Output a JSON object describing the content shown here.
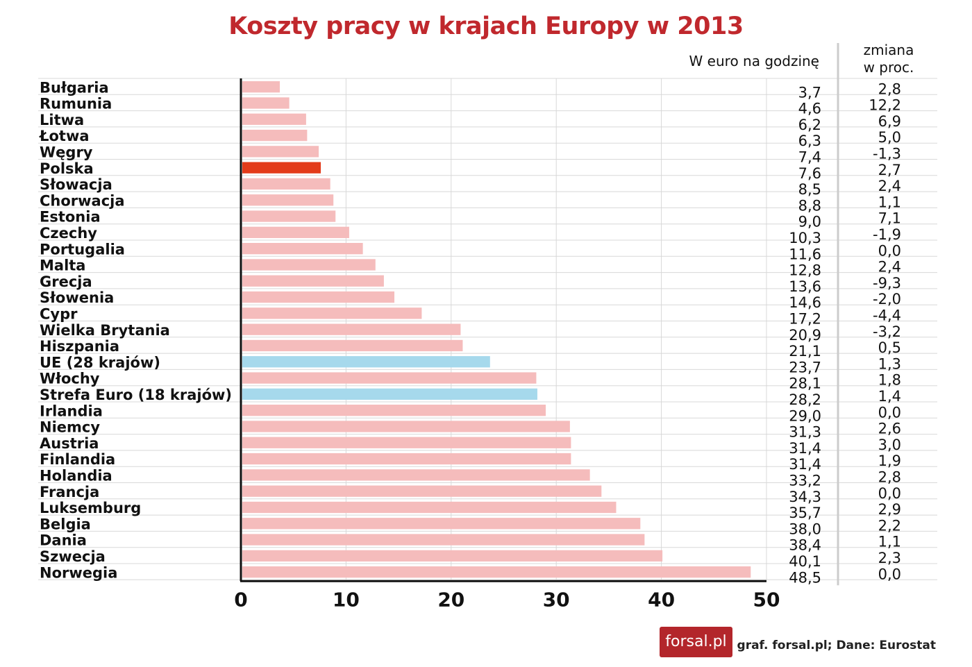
{
  "chart_data": {
    "type": "bar",
    "orientation": "horizontal",
    "title": "Koszty pracy w krajach Europy w 2013",
    "value_header": "W euro na godzinę",
    "change_header_line1": "zmiana",
    "change_header_line2": "w proc.",
    "xlim": [
      0,
      50
    ],
    "xticks": [
      "0",
      "10",
      "20",
      "30",
      "40",
      "50"
    ],
    "grid": true,
    "colors": {
      "default": "#f5bcbc",
      "highlight": "#e33b1a",
      "aggregate": "#a6d9ec"
    },
    "categories": [
      "Bułgaria",
      "Rumunia",
      "Litwa",
      "Łotwa",
      "Węgry",
      "Polska",
      "Słowacja",
      "Chorwacja",
      "Estonia",
      "Czechy",
      "Portugalia",
      "Malta",
      "Grecja",
      "Słowenia",
      "Cypr",
      "Wielka Brytania",
      "Hiszpania",
      "UE (28 krajów)",
      "Włochy",
      "Strefa Euro (18 krajów)",
      "Irlandia",
      "Niemcy",
      "Austria",
      "Finlandia",
      "Holandia",
      "Francja",
      "Luksemburg",
      "Belgia",
      "Dania",
      "Szwecja",
      "Norwegia"
    ],
    "values": [
      3.7,
      4.6,
      6.2,
      6.3,
      7.4,
      7.6,
      8.5,
      8.8,
      9.0,
      10.3,
      11.6,
      12.8,
      13.6,
      14.6,
      17.2,
      20.9,
      21.1,
      23.7,
      28.1,
      28.2,
      29.0,
      31.3,
      31.4,
      31.4,
      33.2,
      34.3,
      35.7,
      38.0,
      38.4,
      40.1,
      48.5
    ],
    "value_labels": [
      "3,7",
      "4,6",
      "6,2",
      "6,3",
      "7,4",
      "7,6",
      "8,5",
      "8,8",
      "9,0",
      "10,3",
      "11,6",
      "12,8",
      "13,6",
      "14,6",
      "17,2",
      "20,9",
      "21,1",
      "23,7",
      "28,1",
      "28,2",
      "29,0",
      "31,3",
      "31,4",
      "31,4",
      "33,2",
      "34,3",
      "35,7",
      "38,0",
      "38,4",
      "40,1",
      "48,5"
    ],
    "change_labels": [
      "2,8",
      "12,2",
      "6,9",
      "5,0",
      "-1,3",
      "2,7",
      "2,4",
      "1,1",
      "7,1",
      "-1,9",
      "0,0",
      "2,4",
      "-9,3",
      "-2,0",
      "-4,4",
      "-3,2",
      "0,5",
      "1,3",
      "1,8",
      "1,4",
      "0,0",
      "2,6",
      "3,0",
      "1,9",
      "2,8",
      "0,0",
      "2,9",
      "2,2",
      "1,1",
      "2,3",
      "0,0"
    ],
    "bar_color_keys": [
      "default",
      "default",
      "default",
      "default",
      "default",
      "highlight",
      "default",
      "default",
      "default",
      "default",
      "default",
      "default",
      "default",
      "default",
      "default",
      "default",
      "default",
      "aggregate",
      "default",
      "aggregate",
      "default",
      "default",
      "default",
      "default",
      "default",
      "default",
      "default",
      "default",
      "default",
      "default",
      "default"
    ]
  },
  "source": "graf. forsal.pl;  Dane: Eurostat",
  "logo_text": "forsal.pl"
}
